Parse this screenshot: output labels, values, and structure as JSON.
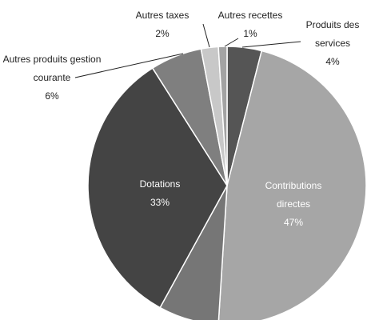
{
  "chart_data": {
    "type": "pie",
    "categories": [
      "Produits des services",
      "Contributions directes",
      null,
      "Dotations",
      "Autres produits gestion courante",
      "Autres taxes",
      "Autres recettes"
    ],
    "values": [
      4,
      47,
      7,
      33,
      6,
      2,
      1
    ],
    "value_labels": [
      "4%",
      "47%",
      null,
      "33%",
      "6%",
      "2%",
      "1%"
    ],
    "colors": [
      "#555555",
      "#a6a6a6",
      "#767676",
      "#444444",
      "#7f7f7f",
      "#c8c8c8",
      "#a3a3a3"
    ]
  }
}
